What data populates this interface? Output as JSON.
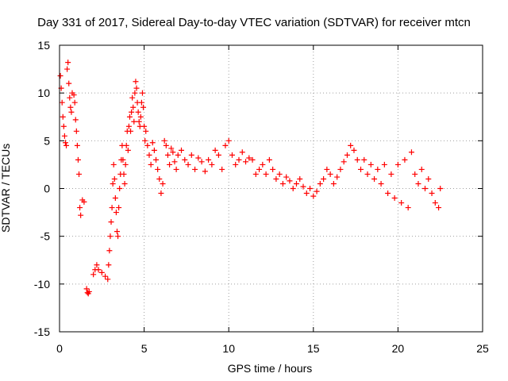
{
  "chart_data": {
    "type": "scatter",
    "title": "Day 331 of 2017, Sidereal Day-to-day VTEC variation (SDTVAR) for receiver mtcn",
    "xlabel": "GPS time / hours",
    "ylabel": "SDTVAR / TECUs",
    "xlim": [
      0,
      25
    ],
    "ylim": [
      -15,
      15
    ],
    "xticks": [
      0,
      5,
      10,
      15,
      20,
      25
    ],
    "yticks": [
      -15,
      -10,
      -5,
      0,
      5,
      10,
      15
    ],
    "grid": true,
    "marker": "+",
    "color": "#ff0000",
    "series": [
      {
        "name": "SDTVAR",
        "points": [
          [
            0.05,
            11.8
          ],
          [
            0.1,
            10.5
          ],
          [
            0.15,
            9.0
          ],
          [
            0.2,
            7.5
          ],
          [
            0.25,
            6.5
          ],
          [
            0.3,
            5.5
          ],
          [
            0.35,
            4.8
          ],
          [
            0.4,
            4.5
          ],
          [
            0.45,
            12.5
          ],
          [
            0.5,
            13.2
          ],
          [
            0.55,
            11.0
          ],
          [
            0.6,
            9.5
          ],
          [
            0.65,
            8.5
          ],
          [
            0.7,
            8.0
          ],
          [
            0.75,
            10.0
          ],
          [
            0.85,
            9.8
          ],
          [
            0.9,
            9.0
          ],
          [
            0.95,
            7.2
          ],
          [
            1.0,
            6.0
          ],
          [
            1.05,
            4.5
          ],
          [
            1.1,
            3.0
          ],
          [
            1.15,
            1.5
          ],
          [
            1.2,
            -2.0
          ],
          [
            1.25,
            -2.8
          ],
          [
            1.35,
            -1.2
          ],
          [
            1.45,
            -1.4
          ],
          [
            1.6,
            -10.5
          ],
          [
            1.65,
            -10.9
          ],
          [
            1.7,
            -11.0
          ],
          [
            1.75,
            -10.8
          ],
          [
            2.0,
            -9.0
          ],
          [
            2.1,
            -8.5
          ],
          [
            2.2,
            -8.0
          ],
          [
            2.3,
            -8.5
          ],
          [
            2.5,
            -8.8
          ],
          [
            2.7,
            -9.2
          ],
          [
            2.85,
            -9.5
          ],
          [
            2.9,
            -8.0
          ],
          [
            2.95,
            -6.5
          ],
          [
            3.0,
            -5.0
          ],
          [
            3.05,
            -3.5
          ],
          [
            3.1,
            -2.0
          ],
          [
            3.15,
            0.5
          ],
          [
            3.2,
            2.5
          ],
          [
            3.25,
            1.0
          ],
          [
            3.3,
            -1.0
          ],
          [
            3.35,
            -2.5
          ],
          [
            3.4,
            -4.5
          ],
          [
            3.45,
            -5.0
          ],
          [
            3.5,
            -2.0
          ],
          [
            3.55,
            0.0
          ],
          [
            3.6,
            1.5
          ],
          [
            3.65,
            3.0
          ],
          [
            3.7,
            4.5
          ],
          [
            3.75,
            3.0
          ],
          [
            3.8,
            1.5
          ],
          [
            3.85,
            0.5
          ],
          [
            3.9,
            2.5
          ],
          [
            3.95,
            4.5
          ],
          [
            4.0,
            6.0
          ],
          [
            4.05,
            4.0
          ],
          [
            4.1,
            6.5
          ],
          [
            4.15,
            7.5
          ],
          [
            4.2,
            6.0
          ],
          [
            4.25,
            8.0
          ],
          [
            4.3,
            9.5
          ],
          [
            4.35,
            8.5
          ],
          [
            4.4,
            7.0
          ],
          [
            4.45,
            10.0
          ],
          [
            4.5,
            11.2
          ],
          [
            4.55,
            10.5
          ],
          [
            4.6,
            9.0
          ],
          [
            4.65,
            8.0
          ],
          [
            4.7,
            7.0
          ],
          [
            4.75,
            6.5
          ],
          [
            4.8,
            7.5
          ],
          [
            4.85,
            9.0
          ],
          [
            4.9,
            10.0
          ],
          [
            4.95,
            8.5
          ],
          [
            5.0,
            6.5
          ],
          [
            5.05,
            5.0
          ],
          [
            5.1,
            6.0
          ],
          [
            5.2,
            4.5
          ],
          [
            5.3,
            3.5
          ],
          [
            5.4,
            2.5
          ],
          [
            5.5,
            4.8
          ],
          [
            5.6,
            4.0
          ],
          [
            5.7,
            3.0
          ],
          [
            5.8,
            2.0
          ],
          [
            5.9,
            1.0
          ],
          [
            6.0,
            -0.5
          ],
          [
            6.1,
            0.5
          ],
          [
            6.2,
            5.0
          ],
          [
            6.3,
            4.5
          ],
          [
            6.4,
            3.5
          ],
          [
            6.5,
            2.5
          ],
          [
            6.6,
            4.2
          ],
          [
            6.7,
            3.8
          ],
          [
            6.8,
            2.8
          ],
          [
            6.9,
            2.0
          ],
          [
            7.0,
            3.5
          ],
          [
            7.2,
            4.0
          ],
          [
            7.4,
            3.0
          ],
          [
            7.6,
            2.5
          ],
          [
            7.8,
            3.5
          ],
          [
            8.0,
            2.0
          ],
          [
            8.2,
            3.2
          ],
          [
            8.4,
            2.8
          ],
          [
            8.6,
            1.8
          ],
          [
            8.8,
            3.0
          ],
          [
            9.0,
            2.5
          ],
          [
            9.2,
            4.0
          ],
          [
            9.4,
            3.5
          ],
          [
            9.6,
            2.0
          ],
          [
            9.8,
            4.5
          ],
          [
            10.0,
            5.0
          ],
          [
            10.2,
            3.5
          ],
          [
            10.4,
            2.5
          ],
          [
            10.6,
            3.0
          ],
          [
            10.8,
            3.8
          ],
          [
            11.0,
            2.8
          ],
          [
            11.2,
            3.2
          ],
          [
            11.4,
            3.0
          ],
          [
            11.6,
            1.5
          ],
          [
            11.8,
            2.0
          ],
          [
            12.0,
            2.5
          ],
          [
            12.2,
            1.5
          ],
          [
            12.4,
            3.0
          ],
          [
            12.6,
            2.0
          ],
          [
            12.8,
            1.0
          ],
          [
            13.0,
            1.5
          ],
          [
            13.2,
            0.5
          ],
          [
            13.4,
            1.2
          ],
          [
            13.6,
            0.8
          ],
          [
            13.8,
            0.0
          ],
          [
            14.0,
            0.5
          ],
          [
            14.2,
            1.0
          ],
          [
            14.4,
            0.2
          ],
          [
            14.6,
            -0.5
          ],
          [
            14.8,
            0.0
          ],
          [
            15.0,
            -0.8
          ],
          [
            15.2,
            -0.3
          ],
          [
            15.4,
            0.5
          ],
          [
            15.6,
            1.0
          ],
          [
            15.8,
            2.0
          ],
          [
            16.0,
            1.5
          ],
          [
            16.2,
            0.5
          ],
          [
            16.4,
            1.2
          ],
          [
            16.6,
            2.0
          ],
          [
            16.8,
            2.8
          ],
          [
            17.0,
            3.5
          ],
          [
            17.2,
            4.5
          ],
          [
            17.4,
            4.0
          ],
          [
            17.6,
            3.0
          ],
          [
            17.8,
            2.0
          ],
          [
            18.0,
            3.0
          ],
          [
            18.2,
            1.5
          ],
          [
            18.4,
            2.5
          ],
          [
            18.6,
            1.0
          ],
          [
            18.8,
            2.0
          ],
          [
            19.0,
            0.5
          ],
          [
            19.2,
            2.5
          ],
          [
            19.4,
            -0.5
          ],
          [
            19.6,
            1.5
          ],
          [
            19.8,
            -1.0
          ],
          [
            20.0,
            2.5
          ],
          [
            20.2,
            -1.5
          ],
          [
            20.4,
            3.0
          ],
          [
            20.6,
            -2.0
          ],
          [
            20.8,
            3.8
          ],
          [
            21.0,
            1.5
          ],
          [
            21.2,
            0.5
          ],
          [
            21.4,
            2.0
          ],
          [
            21.6,
            0.0
          ],
          [
            21.8,
            1.0
          ],
          [
            22.0,
            -0.5
          ],
          [
            22.2,
            -1.5
          ],
          [
            22.4,
            -2.0
          ],
          [
            22.5,
            0.0
          ]
        ]
      }
    ]
  }
}
